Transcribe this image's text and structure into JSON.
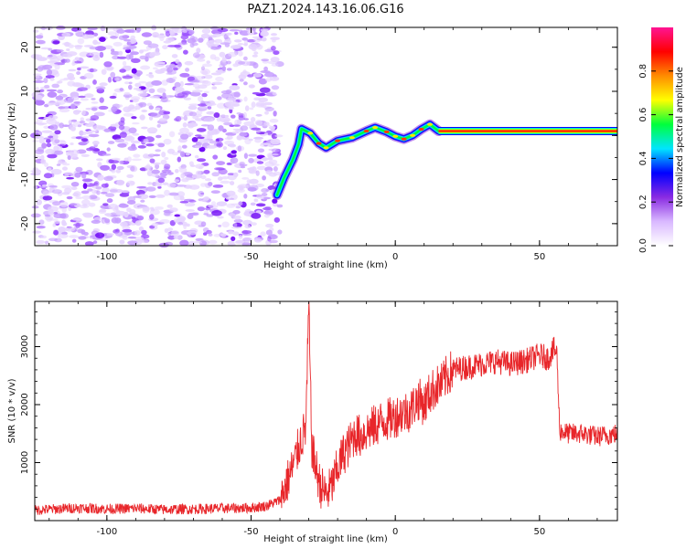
{
  "title": "PAZ1.2024.143.16.06.G16",
  "chart_data": [
    {
      "type": "heatmap",
      "xlabel": "Height of straight line (km)",
      "ylabel": "Frequency (Hz)",
      "xlim": [
        -125,
        77
      ],
      "ylim": [
        -25,
        24.5
      ],
      "xticks": [
        -100,
        -50,
        0,
        50
      ],
      "yticks": [
        -20,
        -10,
        0,
        10,
        20
      ],
      "xtick_labels": [
        "-100",
        "-50",
        "0",
        "50"
      ],
      "ytick_labels": [
        "-20",
        "-10",
        "0",
        "10",
        "20"
      ],
      "colorbar": {
        "label": "Normalized spectral amplitude",
        "range": [
          0,
          1
        ],
        "ticks": [
          0.0,
          0.2,
          0.4,
          0.6,
          0.8
        ],
        "tick_labels": [
          "0.0",
          "0.2",
          "0.4",
          "0.6",
          "0.8"
        ],
        "colormap": [
          "#ffffff",
          "#d9b8ff",
          "#8a2be2",
          "#0000ff",
          "#00e5ff",
          "#00ff3c",
          "#ffff00",
          "#ff8c00",
          "#ff0000",
          "#ff1493"
        ]
      },
      "noise_region": {
        "x_from": -125,
        "x_to": -40,
        "y_from": -25,
        "y_to": 24.5,
        "amplitude": 0.15
      },
      "trace": [
        {
          "x": -41,
          "y": -13.5
        },
        {
          "x": -38.5,
          "y": -9.5
        },
        {
          "x": -35.5,
          "y": -5.5
        },
        {
          "x": -33.5,
          "y": -2.0
        },
        {
          "x": -32.5,
          "y": 1.5
        },
        {
          "x": -29.5,
          "y": 0.5
        },
        {
          "x": -26.5,
          "y": -1.8
        },
        {
          "x": -24,
          "y": -2.8
        },
        {
          "x": -20,
          "y": -1.2
        },
        {
          "x": -15,
          "y": -0.5
        },
        {
          "x": -10,
          "y": 1.0
        },
        {
          "x": -7,
          "y": 1.8
        },
        {
          "x": -3,
          "y": 0.8
        },
        {
          "x": 0,
          "y": -0.2
        },
        {
          "x": 3,
          "y": -0.8
        },
        {
          "x": 6,
          "y": 0.0
        },
        {
          "x": 9,
          "y": 1.4
        },
        {
          "x": 12,
          "y": 2.5
        },
        {
          "x": 15,
          "y": 1.0
        },
        {
          "x": 77,
          "y": 1.0
        }
      ]
    },
    {
      "type": "line",
      "xlabel": "Height of straight line (km)",
      "ylabel": "SNR (10 * v/v)",
      "xlim": [
        -125,
        77
      ],
      "ylim": [
        0,
        3780
      ],
      "xticks": [
        -100,
        -50,
        0,
        50
      ],
      "yticks": [
        1000,
        2000,
        3000
      ],
      "xtick_labels": [
        "-100",
        "-50",
        "0",
        "50"
      ],
      "ytick_labels": [
        "1000",
        "2000",
        "3000"
      ],
      "color": "#e8262a",
      "series": [
        {
          "x": [
            -125,
            -110,
            -100,
            -90,
            -80,
            -70,
            -60,
            -50,
            -45,
            -40,
            -38,
            -35,
            -33,
            -31,
            -30,
            -29,
            -28,
            -26,
            -24,
            -22,
            -20,
            -18,
            -16,
            -14,
            -12,
            -10,
            -8,
            -5,
            -2,
            0,
            2,
            5,
            8,
            10,
            12,
            14,
            16,
            18,
            20,
            25,
            30,
            35,
            40,
            45,
            50,
            53,
            55,
            56,
            57,
            60,
            65,
            70,
            77
          ],
          "y": [
            180,
            220,
            200,
            210,
            190,
            200,
            210,
            220,
            250,
            350,
            600,
            1000,
            1350,
            1600,
            3700,
            1300,
            1000,
            600,
            450,
            600,
            900,
            1150,
            1300,
            1500,
            1450,
            1550,
            1600,
            1700,
            1750,
            1800,
            1850,
            1900,
            2100,
            2000,
            2200,
            2300,
            2350,
            2500,
            2600,
            2650,
            2700,
            2750,
            2700,
            2750,
            2850,
            2800,
            2950,
            2900,
            1550,
            1500,
            1500,
            1450,
            1500
          ]
        }
      ]
    }
  ]
}
